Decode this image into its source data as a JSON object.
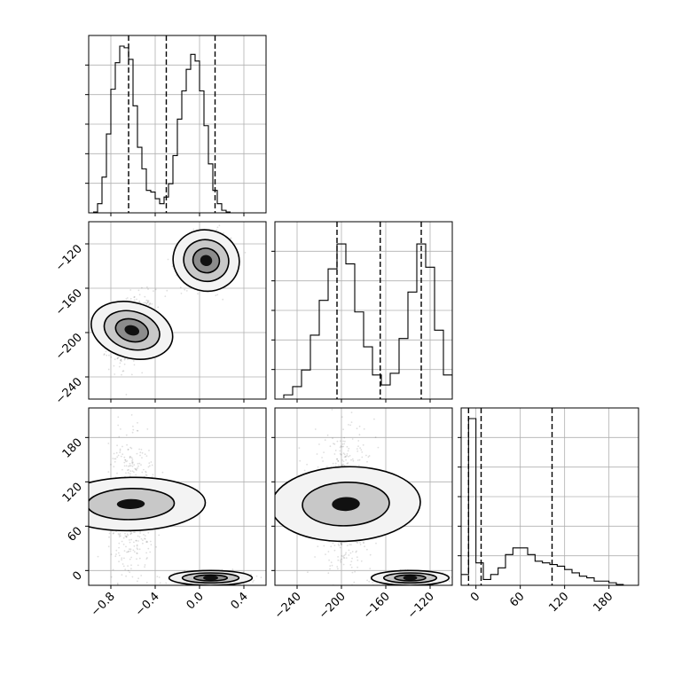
{
  "chart_data": {
    "type": "corner",
    "grid": true,
    "parameters": [
      {
        "index": 0,
        "range": [
          -1.0,
          0.6
        ],
        "ticks": [
          -0.8,
          -0.4,
          0.0,
          0.4
        ],
        "tick_labels": [
          "−0.8",
          "−0.4",
          "0.0",
          "0.4"
        ],
        "quantiles": [
          -0.64,
          -0.3,
          0.14
        ],
        "hist_max": 1.0,
        "hist": [
          [
            -0.96,
            0.0
          ],
          [
            -0.92,
            0.05
          ],
          [
            -0.88,
            0.21
          ],
          [
            -0.84,
            0.47
          ],
          [
            -0.8,
            0.74
          ],
          [
            -0.76,
            0.9
          ],
          [
            -0.72,
            1.0
          ],
          [
            -0.68,
            0.99
          ],
          [
            -0.64,
            0.92
          ],
          [
            -0.6,
            0.64
          ],
          [
            -0.56,
            0.39
          ],
          [
            -0.52,
            0.26
          ],
          [
            -0.48,
            0.13
          ],
          [
            -0.44,
            0.12
          ],
          [
            -0.4,
            0.08
          ],
          [
            -0.36,
            0.05
          ],
          [
            -0.32,
            0.09
          ],
          [
            -0.28,
            0.17
          ],
          [
            -0.24,
            0.34
          ],
          [
            -0.2,
            0.56
          ],
          [
            -0.16,
            0.73
          ],
          [
            -0.12,
            0.86
          ],
          [
            -0.08,
            0.95
          ],
          [
            -0.04,
            0.91
          ],
          [
            0.0,
            0.73
          ],
          [
            0.04,
            0.52
          ],
          [
            0.08,
            0.29
          ],
          [
            0.12,
            0.13
          ],
          [
            0.16,
            0.05
          ],
          [
            0.2,
            0.01
          ],
          [
            0.24,
            0.0
          ]
        ]
      },
      {
        "index": 1,
        "range": [
          -260,
          -100
        ],
        "ticks": [
          -240,
          -200,
          -160,
          -120
        ],
        "tick_labels": [
          "−240",
          "−200",
          "−160",
          "−120"
        ],
        "quantiles": [
          -204,
          -165,
          -128
        ],
        "hist_max": 1.0,
        "hist": [
          [
            -252,
            0.02
          ],
          [
            -244,
            0.07
          ],
          [
            -236,
            0.17
          ],
          [
            -228,
            0.38
          ],
          [
            -220,
            0.59
          ],
          [
            -212,
            0.78
          ],
          [
            -204,
            0.93
          ],
          [
            -196,
            0.81
          ],
          [
            -188,
            0.52
          ],
          [
            -180,
            0.31
          ],
          [
            -172,
            0.14
          ],
          [
            -164,
            0.08
          ],
          [
            -156,
            0.15
          ],
          [
            -148,
            0.36
          ],
          [
            -140,
            0.64
          ],
          [
            -132,
            0.93
          ],
          [
            -124,
            0.79
          ],
          [
            -116,
            0.41
          ],
          [
            -108,
            0.14
          ],
          [
            -100,
            0.02
          ]
        ]
      },
      {
        "index": 2,
        "range": [
          -20,
          220
        ],
        "ticks": [
          0,
          60,
          120,
          180
        ],
        "tick_labels": [
          "0",
          "60",
          "120",
          "180"
        ],
        "quantiles": [
          -10,
          7,
          103
        ],
        "hist_max": 1.0,
        "hist": [
          [
            -20,
            0.06
          ],
          [
            -10,
            1.0
          ],
          [
            0,
            0.13
          ],
          [
            10,
            0.03
          ],
          [
            20,
            0.06
          ],
          [
            30,
            0.1
          ],
          [
            40,
            0.18
          ],
          [
            50,
            0.22
          ],
          [
            60,
            0.22
          ],
          [
            70,
            0.18
          ],
          [
            80,
            0.14
          ],
          [
            90,
            0.13
          ],
          [
            100,
            0.12
          ],
          [
            110,
            0.11
          ],
          [
            120,
            0.09
          ],
          [
            130,
            0.07
          ],
          [
            140,
            0.05
          ],
          [
            150,
            0.04
          ],
          [
            160,
            0.02
          ],
          [
            170,
            0.02
          ],
          [
            180,
            0.01
          ],
          [
            190,
            0.0
          ]
        ]
      }
    ],
    "pairs": [
      {
        "xi": 0,
        "yi": 1,
        "modes": [
          {
            "cx": -0.61,
            "cy": -198,
            "sx": 0.1,
            "sy": 15,
            "rho": 0.25,
            "w": 1.0,
            "contours": [
              1.0,
              1.7,
              2.5
            ]
          },
          {
            "cx": 0.06,
            "cy": -135,
            "sx": 0.11,
            "sy": 12,
            "rho": 0.05,
            "w": 1.0,
            "contours": [
              1.0,
              1.7,
              2.5
            ]
          }
        ]
      },
      {
        "xi": 0,
        "yi": 2,
        "modes": [
          {
            "cx": -0.62,
            "cy": 90,
            "sx": 0.1,
            "sy": 42,
            "rho": -0.05,
            "w": 1.0,
            "contours": [
              1.4,
              2.4
            ]
          },
          {
            "cx": 0.1,
            "cy": -10,
            "sx": 0.15,
            "sy": 4,
            "rho": 0.0,
            "w": 1.0,
            "contours": [
              1.0,
              1.7,
              2.5
            ]
          }
        ]
      },
      {
        "xi": 1,
        "yi": 2,
        "modes": [
          {
            "cx": -196,
            "cy": 90,
            "sx": 14,
            "sy": 42,
            "rho": -0.05,
            "w": 1.0,
            "contours": [
              1.4,
              2.4
            ]
          },
          {
            "cx": -138,
            "cy": -10,
            "sx": 14,
            "sy": 4,
            "rho": 0.0,
            "w": 1.0,
            "contours": [
              1.0,
              1.7,
              2.5
            ]
          }
        ]
      }
    ]
  }
}
